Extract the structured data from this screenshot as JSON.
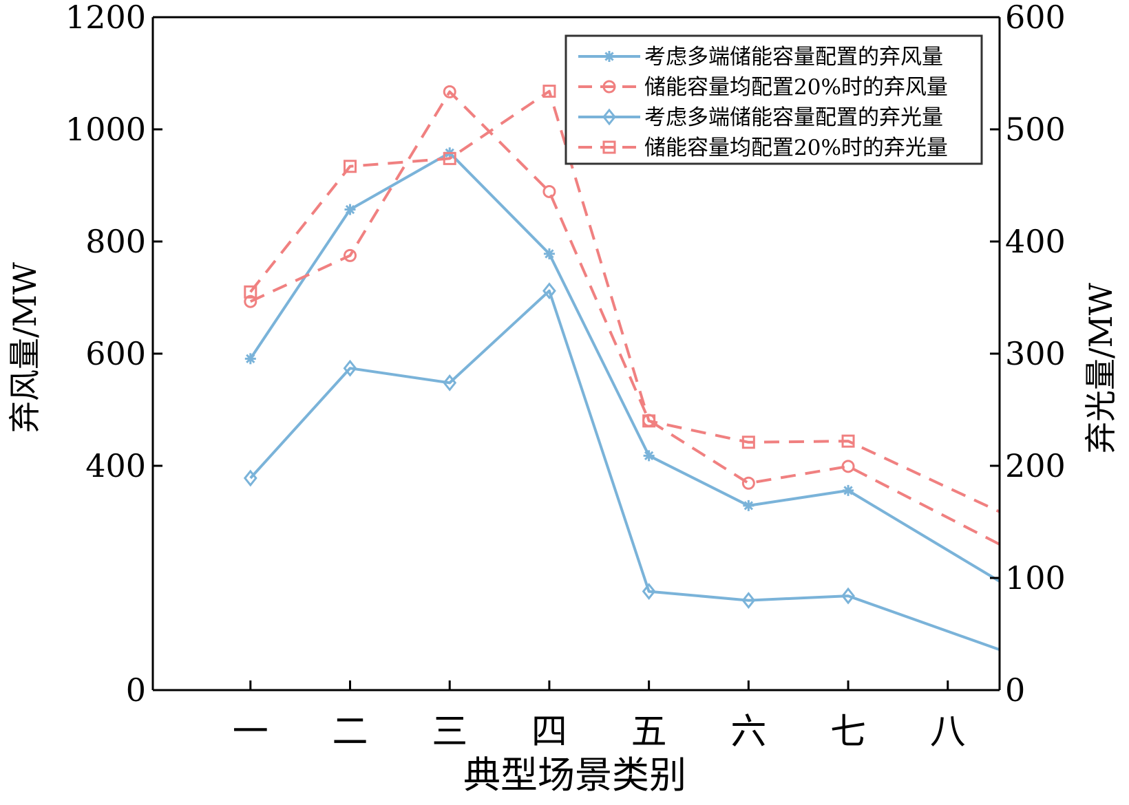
{
  "chart_data": {
    "type": "line",
    "title": "",
    "xlabel": "典型场景类别",
    "ylabel_left": "弃风量/MW",
    "ylabel_right": "弃光量/MW",
    "categories": [
      "一",
      "二",
      "三",
      "四",
      "五",
      "六",
      "七",
      "八"
    ],
    "ylim_left": [
      0,
      1200
    ],
    "ylim_right": [
      0,
      600
    ],
    "yticks_left": [
      "0",
      "400",
      "600",
      "800",
      "1000",
      "1200"
    ],
    "yticks_right": [
      "0",
      "100",
      "200",
      "300",
      "400",
      "500",
      "600"
    ],
    "legend_position": "top-right",
    "colors": {
      "blue": "#7ab3d9",
      "red": "#f08080",
      "axis": "#000000",
      "legend_border": "#333333"
    },
    "series": [
      {
        "name": "考虑多端储能容量配置的弃风量",
        "axis": "left",
        "color": "#7ab3d9",
        "dash": "solid",
        "marker": "star",
        "values": [
          591,
          857,
          958,
          778,
          418,
          329,
          356,
          194
        ]
      },
      {
        "name": "储能容量均配置20%时的弃风量",
        "axis": "left",
        "color": "#f08080",
        "dash": "dashed",
        "marker": "circle",
        "values": [
          693,
          775,
          1067,
          889,
          481,
          369,
          399,
          260
        ]
      },
      {
        "name": "考虑多端储能容量配置的弃光量",
        "axis": "right",
        "color": "#7ab3d9",
        "dash": "solid",
        "marker": "diamond",
        "values": [
          189,
          287,
          274,
          356,
          88,
          80,
          84,
          36
        ]
      },
      {
        "name": "储能容量均配置20%时的弃光量",
        "axis": "right",
        "color": "#f08080",
        "dash": "dashed",
        "marker": "square",
        "values": [
          355,
          467,
          474,
          534,
          240,
          221,
          222,
          159
        ]
      }
    ]
  }
}
